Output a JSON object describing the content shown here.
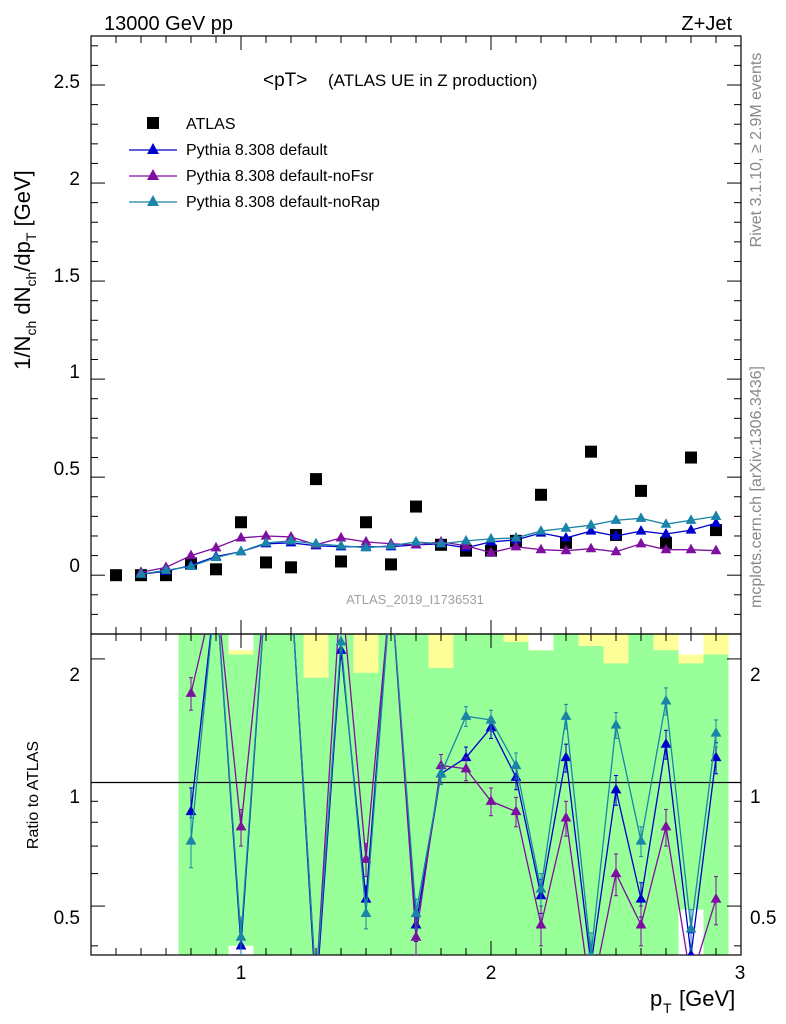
{
  "header": {
    "left": "13000 GeV pp",
    "right": "Z+Jet"
  },
  "side_labels": {
    "rivet": "Rivet 3.1.10, ≥ 2.9M events",
    "mcplots": "mcplots.cern.ch [arXiv:1306.3436]"
  },
  "main": {
    "title_main": "<pT>",
    "title_sub": "(ATLAS UE in Z production)",
    "analysis_id": "ATLAS_2019_I1736531"
  },
  "legend": {
    "atlas": "ATLAS",
    "s1": "Pythia 8.308 default",
    "s2": "Pythia 8.308 default-noFsr",
    "s3": "Pythia 8.308 default-noRap"
  },
  "axes": {
    "ylabel_main": "1/N_ch dN_ch/dp_T [GeV]",
    "ylabel_ratio": "Ratio to ATLAS",
    "xlabel": "p_T [GeV]",
    "xticks": [
      "1",
      "2",
      "3"
    ],
    "yticks_main": [
      "0",
      "0.5",
      "1",
      "1.5",
      "2",
      "2.5"
    ],
    "yticks_ratio": [
      "0.5",
      "1",
      "2"
    ]
  },
  "chart_data": [
    {
      "type": "scatter",
      "panel": "main",
      "title": "<pT> (ATLAS UE in Z production)",
      "xlabel": "p_T [GeV]",
      "ylabel": "1/N_ch dN_ch/dp_T [GeV]",
      "xlim": [
        0.4,
        3.0
      ],
      "ylim": [
        -0.3,
        2.75
      ],
      "x": [
        0.5,
        0.6,
        0.7,
        0.8,
        0.9,
        1.0,
        1.1,
        1.2,
        1.3,
        1.4,
        1.5,
        1.6,
        1.7,
        1.8,
        1.9,
        2.0,
        2.1,
        2.2,
        2.3,
        2.4,
        2.5,
        2.6,
        2.7,
        2.8,
        2.9
      ],
      "series": [
        {
          "name": "ATLAS",
          "color": "#000000",
          "values": [
            0.0,
            0.0,
            0.0,
            0.06,
            0.03,
            0.27,
            0.065,
            0.04,
            0.49,
            0.07,
            0.27,
            0.055,
            0.35,
            0.155,
            0.125,
            0.125,
            0.175,
            0.41,
            0.165,
            0.63,
            0.205,
            0.43,
            0.165,
            0.6,
            0.23
          ]
        },
        {
          "name": "Pythia 8.308 default",
          "color": "#0000cc",
          "values": [
            null,
            0.005,
            0.02,
            0.05,
            0.095,
            0.12,
            0.16,
            0.165,
            0.15,
            0.145,
            0.145,
            0.145,
            0.155,
            0.16,
            0.14,
            0.17,
            0.18,
            0.215,
            0.19,
            0.225,
            0.2,
            0.225,
            0.21,
            0.23,
            0.265
          ]
        },
        {
          "name": "Pythia 8.308 default-noFsr",
          "color": "#7f0fa0",
          "values": [
            null,
            0.015,
            0.04,
            0.1,
            0.14,
            0.19,
            0.2,
            0.195,
            0.155,
            0.19,
            0.17,
            0.16,
            0.155,
            0.17,
            0.15,
            0.115,
            0.145,
            0.13,
            0.125,
            0.135,
            0.12,
            0.16,
            0.13,
            0.13,
            0.125
          ]
        },
        {
          "name": "Pythia 8.308 default-noRap",
          "color": "#1a85a8",
          "values": [
            null,
            0.005,
            0.025,
            0.045,
            0.09,
            0.12,
            0.165,
            0.175,
            0.16,
            0.15,
            0.14,
            0.15,
            0.17,
            0.16,
            0.175,
            0.185,
            0.19,
            0.225,
            0.24,
            0.255,
            0.28,
            0.29,
            0.26,
            0.28,
            0.3
          ]
        }
      ]
    },
    {
      "type": "line",
      "panel": "ratio",
      "xlabel": "p_T [GeV]",
      "ylabel": "Ratio to ATLAS",
      "xlim": [
        0.4,
        3.0
      ],
      "ylim": [
        0.38,
        2.3
      ],
      "scale": "log",
      "x": [
        0.8,
        0.9,
        1.0,
        1.1,
        1.2,
        1.3,
        1.4,
        1.5,
        1.6,
        1.7,
        1.8,
        1.9,
        2.0,
        2.1,
        2.2,
        2.3,
        2.4,
        2.5,
        2.6,
        2.7,
        2.8,
        2.9
      ],
      "band_green": [
        {
          "x": [
            0.75,
            0.95
          ],
          "lo": 0.38,
          "hi": 2.3
        },
        {
          "x": [
            0.95,
            1.05
          ],
          "lo": 0.4,
          "hi": 2.05
        },
        {
          "x": [
            1.05,
            1.25
          ],
          "lo": 0.38,
          "hi": 2.3
        },
        {
          "x": [
            1.25,
            1.35
          ],
          "lo": 0.38,
          "hi": 1.8
        },
        {
          "x": [
            1.35,
            1.45
          ],
          "lo": 0.38,
          "hi": 2.3
        },
        {
          "x": [
            1.45,
            1.55
          ],
          "lo": 0.38,
          "hi": 1.85
        },
        {
          "x": [
            1.55,
            1.75
          ],
          "lo": 0.38,
          "hi": 2.3
        },
        {
          "x": [
            1.75,
            1.85
          ],
          "lo": 0.38,
          "hi": 1.9
        },
        {
          "x": [
            1.85,
            2.05
          ],
          "lo": 0.38,
          "hi": 2.3
        },
        {
          "x": [
            2.05,
            2.15
          ],
          "lo": 0.38,
          "hi": 2.2
        },
        {
          "x": [
            2.15,
            2.25
          ],
          "lo": 0.38,
          "hi": 2.1
        },
        {
          "x": [
            2.25,
            2.35
          ],
          "lo": 0.38,
          "hi": 2.3
        },
        {
          "x": [
            2.35,
            2.45
          ],
          "lo": 0.38,
          "hi": 2.15
        },
        {
          "x": [
            2.45,
            2.55
          ],
          "lo": 0.38,
          "hi": 1.95
        },
        {
          "x": [
            2.55,
            2.65
          ],
          "lo": 0.38,
          "hi": 2.3
        },
        {
          "x": [
            2.65,
            2.75
          ],
          "lo": 0.38,
          "hi": 2.1
        },
        {
          "x": [
            2.75,
            2.85
          ],
          "lo": 0.38,
          "hi": 1.95
        },
        {
          "x": [
            2.85,
            2.95
          ],
          "lo": 0.38,
          "hi": 2.05
        }
      ],
      "band_yellow": [
        {
          "x": [
            0.95,
            1.05
          ],
          "lo": 0.38,
          "hi": 2.3
        },
        {
          "x": [
            1.25,
            1.35
          ],
          "lo": 0.38,
          "hi": 2.3
        },
        {
          "x": [
            1.45,
            1.55
          ],
          "lo": 0.38,
          "hi": 2.3
        },
        {
          "x": [
            1.75,
            1.85
          ],
          "lo": 0.38,
          "hi": 2.3
        },
        {
          "x": [
            2.05,
            2.15
          ],
          "lo": 0.38,
          "hi": 2.3
        },
        {
          "x": [
            2.15,
            2.25
          ],
          "lo": 0.38,
          "hi": 2.2
        },
        {
          "x": [
            2.35,
            2.45
          ],
          "lo": 0.38,
          "hi": 2.3
        },
        {
          "x": [
            2.45,
            2.55
          ],
          "lo": 0.38,
          "hi": 2.3
        },
        {
          "x": [
            2.65,
            2.75
          ],
          "lo": 0.38,
          "hi": 2.3
        },
        {
          "x": [
            2.75,
            2.85
          ],
          "lo": 0.38,
          "hi": 2.1
        },
        {
          "x": [
            2.85,
            2.95
          ],
          "lo": 0.38,
          "hi": 2.3
        }
      ],
      "band_white": [
        {
          "x": [
            0.95,
            1.05
          ],
          "lo": 2.1,
          "hi": 2.3
        },
        {
          "x": [
            2.15,
            2.25
          ],
          "lo": 2.1,
          "hi": 2.3
        },
        {
          "x": [
            2.75,
            2.85
          ],
          "lo": 2.05,
          "hi": 2.3
        },
        {
          "x": [
            0.95,
            1.05
          ],
          "lo": 0.38,
          "hi": 0.4
        },
        {
          "x": [
            2.75,
            2.85
          ],
          "lo": 0.38,
          "hi": 0.49
        }
      ],
      "series": [
        {
          "name": "Pythia 8.308 default",
          "color": "#0000cc",
          "values": [
            0.85,
            3.0,
            0.4,
            3.0,
            3.0,
            0.3,
            2.1,
            0.52,
            3.0,
            0.45,
            1.05,
            1.15,
            1.36,
            1.03,
            0.53,
            1.15,
            0.36,
            0.96,
            0.52,
            1.24,
            0.38,
            1.15
          ],
          "err": [
            0.12,
            0.1,
            0.05,
            0.1,
            0.1,
            0.05,
            0.1,
            0.04,
            0.1,
            0.04,
            0.06,
            0.07,
            0.08,
            0.07,
            0.05,
            0.09,
            0.05,
            0.08,
            0.05,
            0.1,
            0.05,
            0.1
          ]
        },
        {
          "name": "Pythia 8.308 default-noFsr",
          "color": "#7f0fa0",
          "values": [
            1.65,
            3.0,
            0.78,
            3.0,
            3.0,
            0.32,
            3.0,
            0.65,
            3.0,
            0.42,
            1.1,
            1.08,
            0.9,
            0.85,
            0.45,
            0.82,
            0.3,
            0.6,
            0.45,
            0.78,
            0.33,
            0.52
          ],
          "err": [
            0.15,
            0.1,
            0.08,
            0.1,
            0.1,
            0.05,
            0.1,
            0.06,
            0.1,
            0.04,
            0.07,
            0.07,
            0.07,
            0.07,
            0.05,
            0.08,
            0.05,
            0.07,
            0.05,
            0.08,
            0.05,
            0.07
          ]
        },
        {
          "name": "Pythia 8.308 default-noRap",
          "color": "#1a85a8",
          "values": [
            0.72,
            3.0,
            0.42,
            3.0,
            3.0,
            0.32,
            2.2,
            0.48,
            3.0,
            0.48,
            1.05,
            1.45,
            1.42,
            1.1,
            0.55,
            1.45,
            0.38,
            1.38,
            0.72,
            1.58,
            0.44,
            1.32
          ],
          "err": [
            0.1,
            0.1,
            0.05,
            0.1,
            0.1,
            0.05,
            0.1,
            0.04,
            0.1,
            0.04,
            0.06,
            0.08,
            0.08,
            0.08,
            0.05,
            0.1,
            0.05,
            0.1,
            0.06,
            0.12,
            0.05,
            0.1
          ]
        }
      ]
    }
  ]
}
